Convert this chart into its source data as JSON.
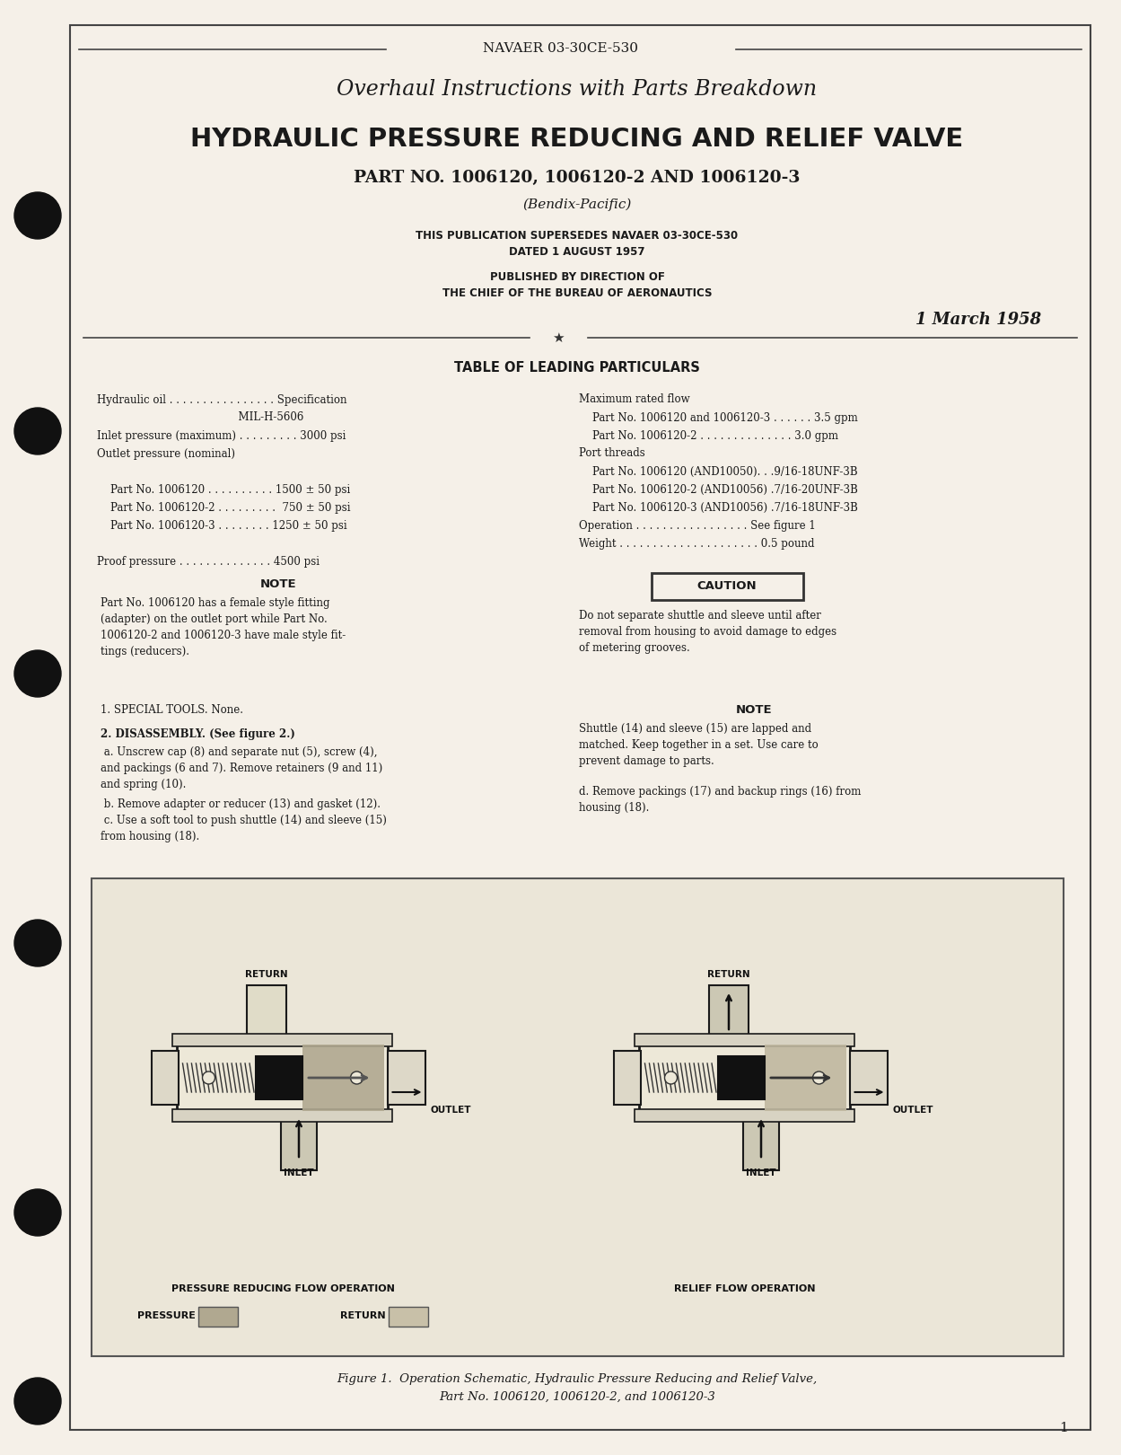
{
  "bg_color": "#f5f0e8",
  "text_color": "#1a1a1a",
  "header_doc_num": "NAVAER 03-30CE-530",
  "title_line1": "Overhaul Instructions with Parts Breakdown",
  "title_line2": "HYDRAULIC PRESSURE REDUCING AND RELIEF VALVE",
  "title_line3": "PART NO. 1006120, 1006120-2 AND 1006120-3",
  "title_line4": "(Bendix-Pacific)",
  "supersedes_line1": "THIS PUBLICATION SUPERSEDES NAVAER 03-30CE-530",
  "supersedes_line2": "DATED 1 AUGUST 1957",
  "published_line1": "PUBLISHED BY DIRECTION OF",
  "published_line2": "THE CHIEF OF THE BUREAU OF AERONAUTICS",
  "date_line": "1 March 1958",
  "table_heading": "TABLE OF LEADING PARTICULARS",
  "left_col": [
    "Hydraulic oil . . . . . . . . . . . . . . . . Specification",
    "                                          MIL-H-5606",
    "Inlet pressure (maximum) . . . . . . . . . 3000 psi",
    "Outlet pressure (nominal)",
    "",
    "    Part No. 1006120 . . . . . . . . . . 1500 ± 50 psi",
    "    Part No. 1006120-2 . . . . . . . . .  750 ± 50 psi",
    "    Part No. 1006120-3 . . . . . . . . 1250 ± 50 psi",
    "",
    "Proof pressure . . . . . . . . . . . . . . 4500 psi"
  ],
  "right_col": [
    "Maximum rated flow",
    "    Part No. 1006120 and 1006120-3 . . . . . . 3.5 gpm",
    "    Part No. 1006120-2 . . . . . . . . . . . . . . 3.0 gpm",
    "Port threads",
    "    Part No. 1006120 (AND10050). . .9/16-18UNF-3B",
    "    Part No. 1006120-2 (AND10056) .7/16-20UNF-3B",
    "    Part No. 1006120-3 (AND10056) .7/16-18UNF-3B",
    "Operation . . . . . . . . . . . . . . . . . See figure 1",
    "Weight . . . . . . . . . . . . . . . . . . . . . 0.5 pound"
  ],
  "note_title": "NOTE",
  "note_text": "Part No. 1006120 has a female style fitting\n(adapter) on the outlet port while Part No.\n1006120-2 and 1006120-3 have male style fit-\ntings (reducers).",
  "caution_title": "CAUTION",
  "caution_text": "Do not separate shuttle and sleeve until after\nremoval from housing to avoid damage to edges\nof metering grooves.",
  "special_tools": "1. SPECIAL TOOLS. None.",
  "disassembly_title": "2. DISASSEMBLY. (See figure 2.)",
  "disassembly_a": " a. Unscrew cap (8) and separate nut (5), screw (4),\nand packings (6 and 7). Remove retainers (9 and 11)\nand spring (10).",
  "disassembly_b": " b. Remove adapter or reducer (13) and gasket (12).\n c. Use a soft tool to push shuttle (14) and sleeve (15)\nfrom housing (18).",
  "disassembly_d": "d. Remove packings (17) and backup rings (16) from\nhousing (18).",
  "note2_title": "NOTE",
  "note2_text": "Shuttle (14) and sleeve (15) are lapped and\nmatched. Keep together in a set. Use care to\nprevent damage to parts.",
  "figure_caption1": "Figure 1.  Operation Schematic, Hydraulic Pressure Reducing and Relief Valve,",
  "figure_caption2": "Part No. 1006120, 1006120-2, and 1006120-3",
  "fig_label_left": "PRESSURE REDUCING FLOW OPERATION",
  "fig_label_right": "RELIEF FLOW OPERATION",
  "fig_legend_pressure": "PRESSURE",
  "fig_legend_return": "RETURN",
  "page_number": "1"
}
